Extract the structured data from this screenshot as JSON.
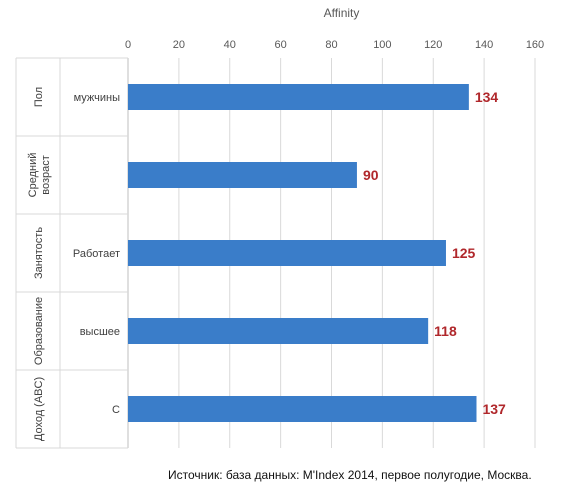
{
  "chart_data": {
    "type": "bar",
    "orientation": "horizontal",
    "xlabel": "Affinity",
    "xlim": [
      0,
      160
    ],
    "xticks": [
      0,
      20,
      40,
      60,
      80,
      100,
      120,
      140,
      160
    ],
    "xaxis_position": "top",
    "grid": true,
    "groups": [
      {
        "label": "Пол",
        "category": "мужчины",
        "value": 134
      },
      {
        "label": "Средний возраст",
        "label_lines": [
          "Средний",
          "возраст"
        ],
        "category": "",
        "value": 90
      },
      {
        "label": "Занятость",
        "category": "Работает",
        "value": 125
      },
      {
        "label": "Образование",
        "category": "высшее",
        "value": 118
      },
      {
        "label": "Доход (ABC)",
        "category": "C",
        "value": 137
      }
    ],
    "bar_color": "#3a7dc9",
    "label_color": "#b0272b"
  },
  "source": "Источник: база данных: M'Index 2014, первое полугодие, Москва."
}
